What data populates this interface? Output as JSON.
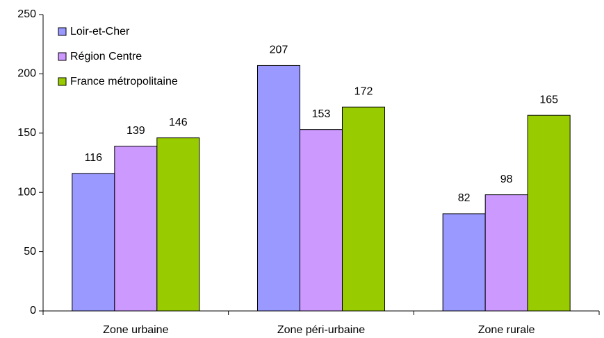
{
  "chart_data": {
    "type": "bar",
    "categories": [
      "Zone urbaine",
      "Zone péri-urbaine",
      "Zone rurale"
    ],
    "series": [
      {
        "name": "Loir-et-Cher",
        "color": "#9999ff",
        "values": [
          116,
          207,
          82
        ]
      },
      {
        "name": "Région Centre",
        "color": "#cc99ff",
        "values": [
          139,
          153,
          98
        ]
      },
      {
        "name": "France métropolitaine",
        "color": "#99cc00",
        "values": [
          146,
          172,
          165
        ]
      }
    ],
    "ylim": [
      0,
      250
    ],
    "yticks": [
      0,
      50,
      100,
      150,
      200,
      250
    ],
    "grid": false,
    "legend": "top-left"
  }
}
